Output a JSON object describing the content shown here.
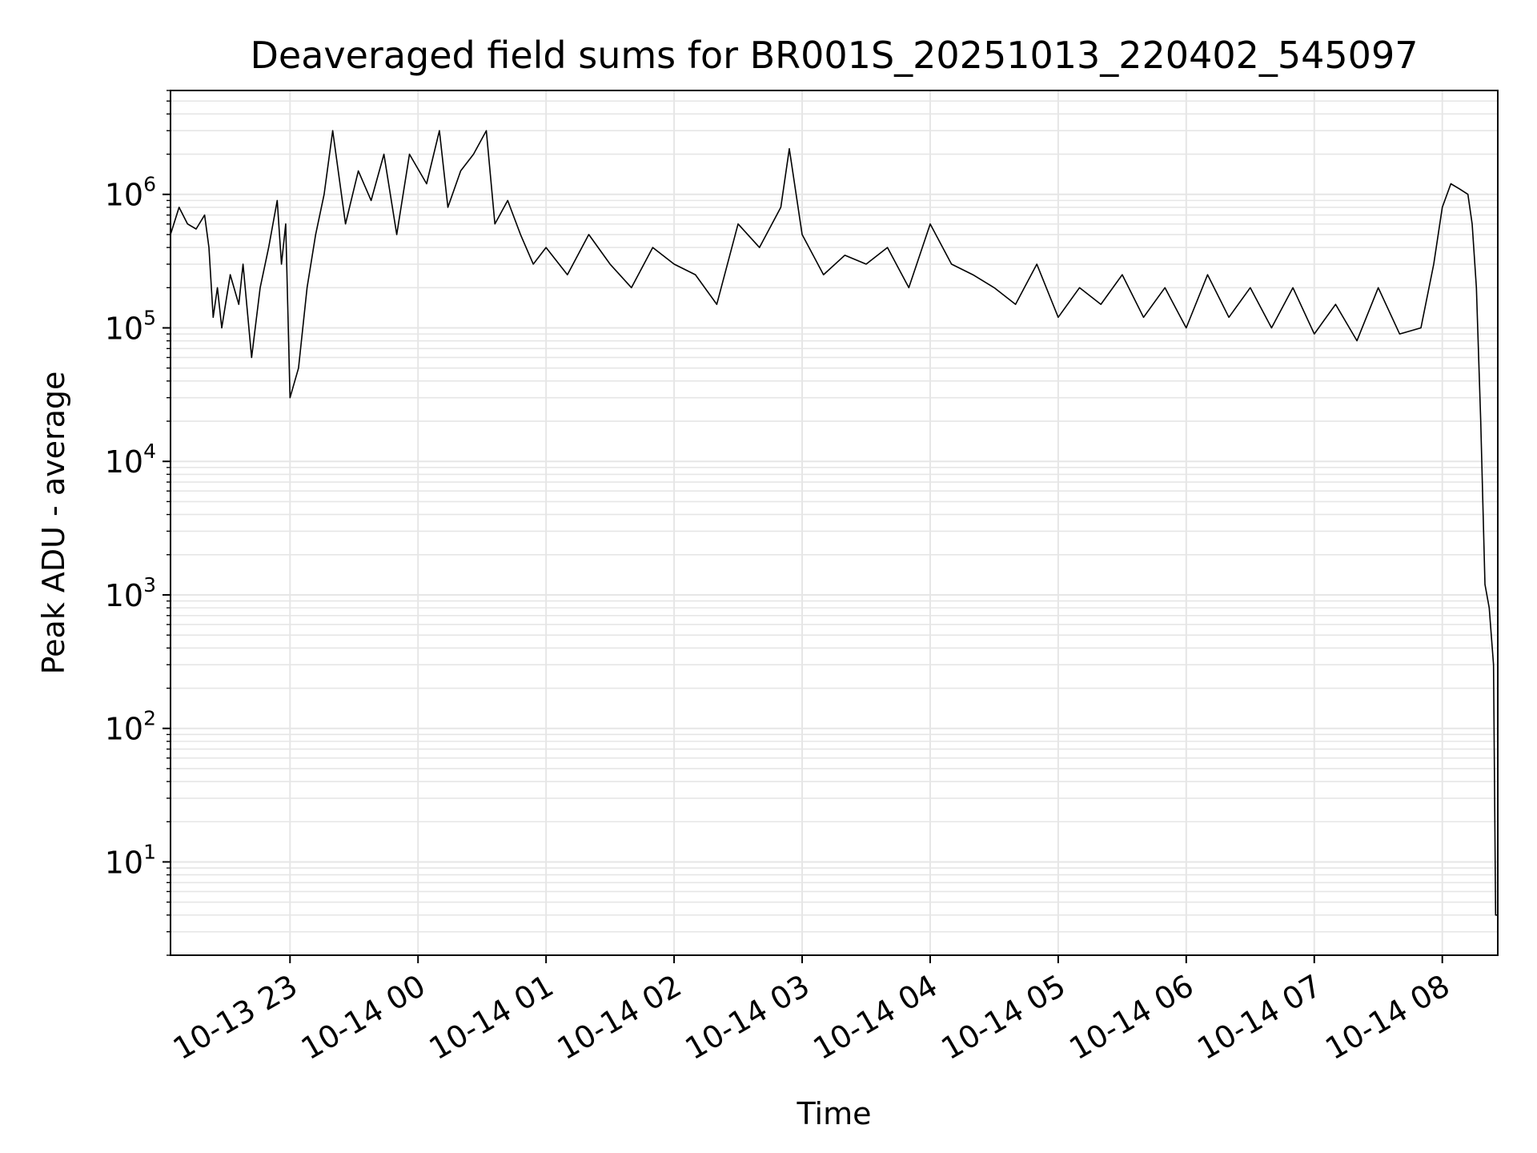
{
  "chart_data": {
    "type": "line",
    "title": "Deaveraged field sums for BR001S_20251013_220402_545097",
    "xlabel": "Time",
    "ylabel": "Peak ADU - average",
    "yscale": "log",
    "grid": "both",
    "xlim": [
      "2025-10-13 22:04",
      "2025-10-14 08:26"
    ],
    "ylim": [
      2,
      6000000
    ],
    "x_ticks": [
      {
        "label": "10-13 23",
        "value": "2025-10-13 23:00"
      },
      {
        "label": "10-14 00",
        "value": "2025-10-14 00:00"
      },
      {
        "label": "10-14 01",
        "value": "2025-10-14 01:00"
      },
      {
        "label": "10-14 02",
        "value": "2025-10-14 02:00"
      },
      {
        "label": "10-14 03",
        "value": "2025-10-14 03:00"
      },
      {
        "label": "10-14 04",
        "value": "2025-10-14 04:00"
      },
      {
        "label": "10-14 05",
        "value": "2025-10-14 05:00"
      },
      {
        "label": "10-14 06",
        "value": "2025-10-14 06:00"
      },
      {
        "label": "10-14 07",
        "value": "2025-10-14 07:00"
      },
      {
        "label": "10-14 08",
        "value": "2025-10-14 08:00"
      }
    ],
    "y_ticks": [
      {
        "base": "10",
        "exp": "1",
        "value": 10
      },
      {
        "base": "10",
        "exp": "2",
        "value": 100
      },
      {
        "base": "10",
        "exp": "3",
        "value": 1000
      },
      {
        "base": "10",
        "exp": "4",
        "value": 10000
      },
      {
        "base": "10",
        "exp": "5",
        "value": 100000
      },
      {
        "base": "10",
        "exp": "6",
        "value": 1000000
      }
    ],
    "series": [
      {
        "color": "#000000",
        "x": [
          "2025-10-13 22:04",
          "2025-10-13 22:08",
          "2025-10-13 22:12",
          "2025-10-13 22:16",
          "2025-10-13 22:20",
          "2025-10-13 22:22",
          "2025-10-13 22:24",
          "2025-10-13 22:26",
          "2025-10-13 22:28",
          "2025-10-13 22:32",
          "2025-10-13 22:36",
          "2025-10-13 22:38",
          "2025-10-13 22:42",
          "2025-10-13 22:46",
          "2025-10-13 22:50",
          "2025-10-13 22:54",
          "2025-10-13 22:56",
          "2025-10-13 22:58",
          "2025-10-13 23:00",
          "2025-10-13 23:04",
          "2025-10-13 23:08",
          "2025-10-13 23:12",
          "2025-10-13 23:16",
          "2025-10-13 23:20",
          "2025-10-13 23:26",
          "2025-10-13 23:32",
          "2025-10-13 23:38",
          "2025-10-13 23:44",
          "2025-10-13 23:50",
          "2025-10-13 23:56",
          "2025-10-14 00:04",
          "2025-10-14 00:10",
          "2025-10-14 00:14",
          "2025-10-14 00:20",
          "2025-10-14 00:26",
          "2025-10-14 00:32",
          "2025-10-14 00:36",
          "2025-10-14 00:42",
          "2025-10-14 00:48",
          "2025-10-14 00:54",
          "2025-10-14 01:00",
          "2025-10-14 01:10",
          "2025-10-14 01:20",
          "2025-10-14 01:30",
          "2025-10-14 01:40",
          "2025-10-14 01:50",
          "2025-10-14 02:00",
          "2025-10-14 02:10",
          "2025-10-14 02:20",
          "2025-10-14 02:30",
          "2025-10-14 02:40",
          "2025-10-14 02:50",
          "2025-10-14 02:54",
          "2025-10-14 03:00",
          "2025-10-14 03:10",
          "2025-10-14 03:20",
          "2025-10-14 03:30",
          "2025-10-14 03:40",
          "2025-10-14 03:50",
          "2025-10-14 04:00",
          "2025-10-14 04:10",
          "2025-10-14 04:20",
          "2025-10-14 04:30",
          "2025-10-14 04:40",
          "2025-10-14 04:50",
          "2025-10-14 05:00",
          "2025-10-14 05:10",
          "2025-10-14 05:20",
          "2025-10-14 05:30",
          "2025-10-14 05:40",
          "2025-10-14 05:50",
          "2025-10-14 06:00",
          "2025-10-14 06:10",
          "2025-10-14 06:20",
          "2025-10-14 06:30",
          "2025-10-14 06:40",
          "2025-10-14 06:50",
          "2025-10-14 07:00",
          "2025-10-14 07:10",
          "2025-10-14 07:20",
          "2025-10-14 07:30",
          "2025-10-14 07:40",
          "2025-10-14 07:50",
          "2025-10-14 07:56",
          "2025-10-14 08:00",
          "2025-10-14 08:04",
          "2025-10-14 08:08",
          "2025-10-14 08:12",
          "2025-10-14 08:14",
          "2025-10-14 08:16",
          "2025-10-14 08:18",
          "2025-10-14 08:20",
          "2025-10-14 08:22",
          "2025-10-14 08:24",
          "2025-10-14 08:25",
          "2025-10-14 08:26"
        ],
        "y": [
          500000,
          800000,
          600000,
          550000,
          700000,
          400000,
          120000,
          200000,
          100000,
          250000,
          150000,
          300000,
          60000,
          200000,
          400000,
          900000,
          300000,
          600000,
          30000,
          50000,
          200000,
          500000,
          1000000,
          3000000,
          600000,
          1500000,
          900000,
          2000000,
          500000,
          2000000,
          1200000,
          3000000,
          800000,
          1500000,
          2000000,
          3000000,
          600000,
          900000,
          500000,
          300000,
          400000,
          250000,
          500000,
          300000,
          200000,
          400000,
          300000,
          250000,
          150000,
          600000,
          400000,
          800000,
          2200000,
          500000,
          250000,
          350000,
          300000,
          400000,
          200000,
          600000,
          300000,
          250000,
          200000,
          150000,
          300000,
          120000,
          200000,
          150000,
          250000,
          120000,
          200000,
          100000,
          250000,
          120000,
          200000,
          100000,
          200000,
          90000,
          150000,
          80000,
          200000,
          90000,
          100000,
          300000,
          800000,
          1200000,
          1100000,
          1000000,
          600000,
          200000,
          20000,
          1200,
          800,
          300,
          4,
          4
        ]
      }
    ]
  }
}
